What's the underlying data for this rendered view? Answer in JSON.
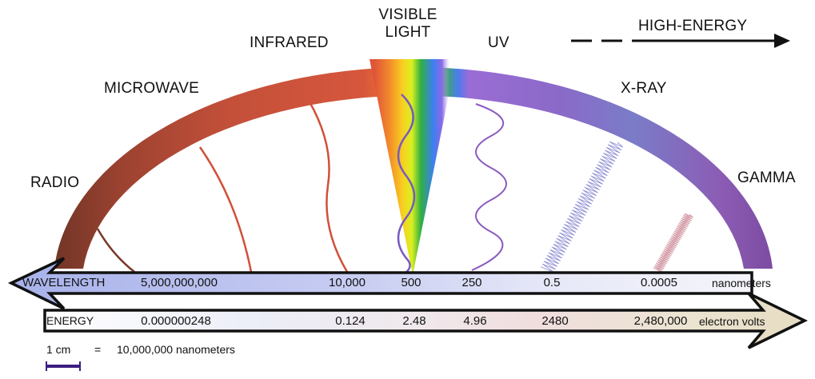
{
  "bands": {
    "radio": "RADIO",
    "microwave": "MICROWAVE",
    "infrared": "INFRARED",
    "visible_line1": "VISIBLE",
    "visible_line2": "LIGHT",
    "uv": "UV",
    "xray": "X-RAY",
    "gamma": "GAMMA"
  },
  "high_energy": "HIGH-ENERGY",
  "wavelength": {
    "label": "WAVELENGTH",
    "values": [
      "5,000,000,000",
      "10,000",
      "500",
      "250",
      "0.5",
      "0.0005"
    ],
    "unit": "nanometers"
  },
  "energy": {
    "label": "ENERGY",
    "values": [
      "0.000000248",
      "0.124",
      "2.48",
      "4.96",
      "2480",
      "2,480,000"
    ],
    "unit": "electron volts"
  },
  "scale": {
    "length": "1 cm",
    "equals": "=",
    "value": "10,000,000 nanometers"
  },
  "colors": {
    "radio": "#7a3a2c",
    "microwave": "#c2503a",
    "infrared": "#d4523c",
    "uv": "#8a62c4",
    "xray": "#7a74c6",
    "gamma": "#8c5cb0",
    "scale_bar": "#3d1f80"
  }
}
